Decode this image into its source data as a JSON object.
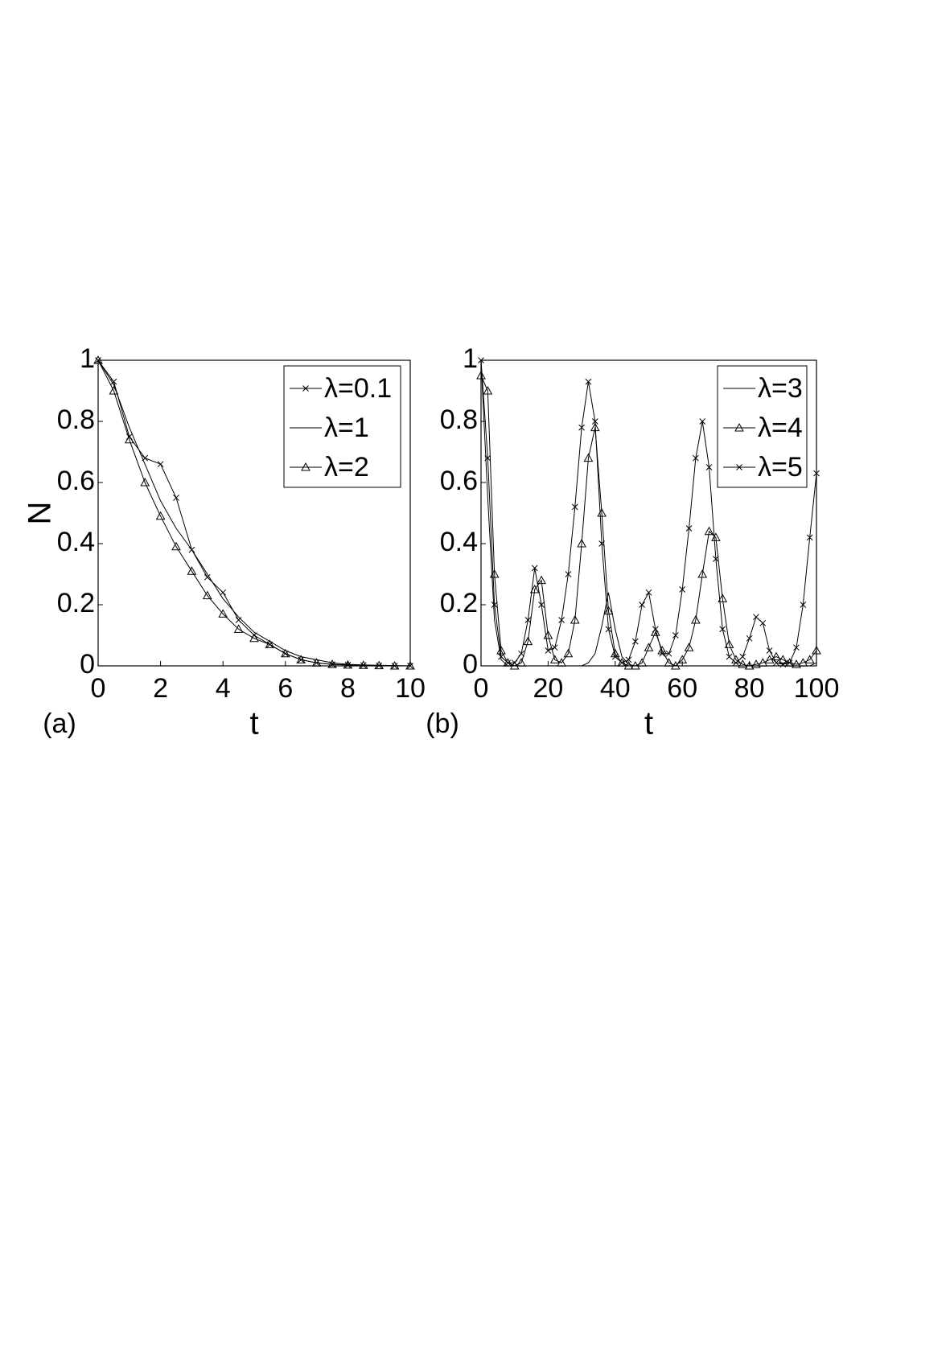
{
  "chart_data": [
    {
      "type": "line",
      "panel_label": "(a)",
      "xlabel": "t",
      "ylabel": "N",
      "x": [
        0,
        0.5,
        1,
        1.5,
        2,
        2.5,
        3,
        3.5,
        4,
        4.5,
        5,
        5.5,
        6,
        6.5,
        7,
        7.5,
        8,
        8.5,
        9,
        9.5,
        10
      ],
      "xlim": [
        0,
        10
      ],
      "xticks": [
        0,
        2,
        4,
        6,
        8,
        10
      ],
      "ylim": [
        0,
        1
      ],
      "yticks": [
        0,
        0.2,
        0.4,
        0.6,
        0.8,
        1
      ],
      "legend": "upper right",
      "series": [
        {
          "name": "λ=0.1",
          "color": "#000000",
          "marker": "x",
          "values": [
            1,
            0.93,
            0.75,
            0.68,
            0.66,
            0.55,
            0.38,
            0.29,
            0.24,
            0.15,
            0.1,
            0.07,
            0.04,
            0.02,
            0.01,
            0.005,
            0.003,
            0.002,
            0.001,
            0,
            0
          ]
        },
        {
          "name": "λ=1",
          "color": "#000000",
          "marker": "none",
          "values": [
            1,
            0.92,
            0.78,
            0.66,
            0.54,
            0.45,
            0.38,
            0.3,
            0.22,
            0.16,
            0.11,
            0.08,
            0.05,
            0.03,
            0.02,
            0.01,
            0.005,
            0.003,
            0.002,
            0.001,
            0
          ]
        },
        {
          "name": "λ=2",
          "color": "#000000",
          "marker": "triangle",
          "values": [
            1,
            0.9,
            0.74,
            0.6,
            0.49,
            0.39,
            0.31,
            0.23,
            0.17,
            0.12,
            0.09,
            0.07,
            0.04,
            0.02,
            0.01,
            0.005,
            0.003,
            0.002,
            0.001,
            0,
            0
          ]
        }
      ]
    },
    {
      "type": "line",
      "panel_label": "(b)",
      "xlabel": "t",
      "x": [
        0,
        2,
        4,
        6,
        8,
        10,
        12,
        14,
        16,
        18,
        20,
        22,
        24,
        26,
        28,
        30,
        32,
        34,
        36,
        38,
        40,
        42,
        44,
        46,
        48,
        50,
        52,
        54,
        56,
        58,
        60,
        62,
        64,
        66,
        68,
        70,
        72,
        74,
        76,
        78,
        80,
        82,
        84,
        86,
        88,
        90,
        92,
        94,
        96,
        98,
        100
      ],
      "xlim": [
        0,
        100
      ],
      "xticks": [
        0,
        20,
        40,
        60,
        80,
        100
      ],
      "ylim": [
        0,
        1
      ],
      "yticks": [
        0,
        0.2,
        0.4,
        0.6,
        0.8,
        1
      ],
      "legend": "upper right",
      "series": [
        {
          "name": "λ=3",
          "color": "#000000",
          "marker": "none",
          "values": [
            1,
            0.55,
            0.15,
            0.02,
            0,
            0,
            0,
            0,
            0,
            0,
            0,
            0,
            0,
            0,
            0,
            0,
            0.01,
            0.04,
            0.13,
            0.24,
            0.12,
            0.03,
            0.005,
            0,
            0,
            0,
            0,
            0,
            0,
            0,
            0,
            0,
            0,
            0,
            0,
            0,
            0,
            0,
            0,
            0,
            0,
            0,
            0,
            0,
            0,
            0,
            0,
            0,
            0,
            0,
            0.01
          ]
        },
        {
          "name": "λ=4",
          "color": "#000000",
          "marker": "triangle",
          "values": [
            0.95,
            0.9,
            0.3,
            0.05,
            0.01,
            0,
            0.01,
            0.08,
            0.25,
            0.28,
            0.1,
            0.02,
            0.01,
            0.04,
            0.15,
            0.4,
            0.68,
            0.78,
            0.5,
            0.18,
            0.04,
            0.01,
            0,
            0,
            0.01,
            0.06,
            0.11,
            0.05,
            0.01,
            0,
            0.02,
            0.06,
            0.15,
            0.3,
            0.44,
            0.42,
            0.22,
            0.07,
            0.02,
            0.005,
            0,
            0.005,
            0.01,
            0.02,
            0.03,
            0.02,
            0.01,
            0.005,
            0.01,
            0.02,
            0.05
          ]
        },
        {
          "name": "λ=5",
          "color": "#000000",
          "marker": "x",
          "values": [
            1,
            0.68,
            0.2,
            0.03,
            0.01,
            0.01,
            0.04,
            0.15,
            0.32,
            0.2,
            0.05,
            0.06,
            0.15,
            0.3,
            0.52,
            0.78,
            0.93,
            0.8,
            0.4,
            0.12,
            0.03,
            0.01,
            0.02,
            0.08,
            0.2,
            0.24,
            0.12,
            0.04,
            0.04,
            0.1,
            0.25,
            0.45,
            0.68,
            0.8,
            0.65,
            0.35,
            0.12,
            0.03,
            0.01,
            0.03,
            0.09,
            0.16,
            0.14,
            0.05,
            0.01,
            0.005,
            0.01,
            0.06,
            0.2,
            0.42,
            0.63
          ]
        }
      ]
    }
  ]
}
